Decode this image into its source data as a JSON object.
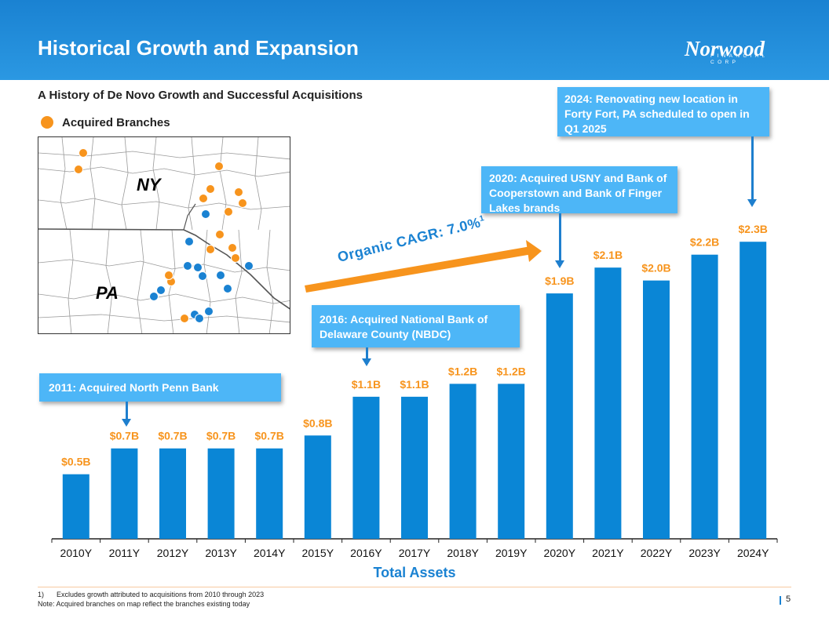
{
  "header": {
    "title": "Historical Growth and Expansion",
    "logo_main": "Norwood",
    "logo_sub": "FINANCIAL CORP",
    "background": "#1a82d2"
  },
  "subtitle": "A History of De Novo Growth and Successful Acquisitions",
  "legend": {
    "label": "Acquired Branches",
    "color": "#f7941d"
  },
  "map": {
    "labels": {
      "ny": "NY",
      "pa": "PA"
    },
    "acquired_color": "#f7941d",
    "other_color": "#1a82d2"
  },
  "callouts": {
    "c2011": "2011: Acquired North Penn Bank",
    "c2016": "2016: Acquired National Bank of Delaware County (NBDC)",
    "c2020": "2020: Acquired USNY and Bank of Cooperstown and Bank of Finger Lakes brands",
    "c2024": "2024: Renovating new location in Forty Fort, PA scheduled to open in Q1 2025"
  },
  "cagr": {
    "text": "Organic CAGR: 7.0%",
    "sup": "1"
  },
  "chart_data": {
    "type": "bar",
    "categories": [
      "2010Y",
      "2011Y",
      "2012Y",
      "2013Y",
      "2014Y",
      "2015Y",
      "2016Y",
      "2017Y",
      "2018Y",
      "2019Y",
      "2020Y",
      "2021Y",
      "2022Y",
      "2023Y",
      "2024Y"
    ],
    "values": [
      0.5,
      0.7,
      0.7,
      0.7,
      0.7,
      0.8,
      1.1,
      1.1,
      1.2,
      1.2,
      1.9,
      2.1,
      2.0,
      2.2,
      2.3
    ],
    "data_labels": [
      "$0.5B",
      "$0.7B",
      "$0.7B",
      "$0.7B",
      "$0.7B",
      "$0.8B",
      "$1.1B",
      "$1.1B",
      "$1.2B",
      "$1.2B",
      "$1.9B",
      "$2.1B",
      "$2.0B",
      "$2.2B",
      "$2.3B"
    ],
    "xlabel": "Total Assets",
    "ylabel": "",
    "ylim": [
      0,
      2.35
    ],
    "bar_color": "#0a86d6",
    "label_color": "#f7941d",
    "grid": false
  },
  "footnotes": {
    "f1_num": "1)",
    "f1_text": "Excludes growth attributed to acquisitions from 2010 through 2023",
    "f2": "Note: Acquired branches on map reflect the branches existing today"
  },
  "page_number": "5"
}
